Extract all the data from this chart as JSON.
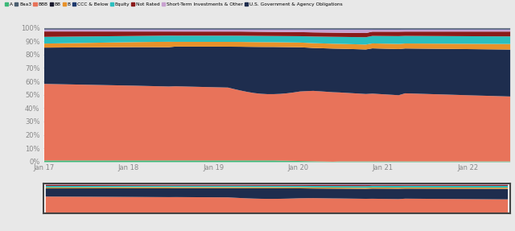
{
  "legend_labels": [
    "A",
    "Baa3",
    "BBB",
    "BB",
    "B",
    "CCC & Below",
    "Equity",
    "Not Rated",
    "Short-Term Investments & Other",
    "U.S. Government & Agency Obligations"
  ],
  "legend_colors": [
    "#3cb878",
    "#2c3e50",
    "#e8735a",
    "#1a1a2e",
    "#e8922a",
    "#1e3a6e",
    "#2abfbf",
    "#8b1a1a",
    "#c8a0d0",
    "#1e2d4e"
  ],
  "n_points": 72,
  "x_labels": [
    "Jan 17",
    "Jan 18",
    "Jan 19",
    "Jan 20",
    "Jan 21",
    "Jan 22"
  ],
  "y_ticks": [
    0,
    10,
    20,
    30,
    40,
    50,
    60,
    70,
    80,
    90,
    100
  ],
  "fig_bg": "#e8e8e8",
  "plot_bg": "#ffffff"
}
